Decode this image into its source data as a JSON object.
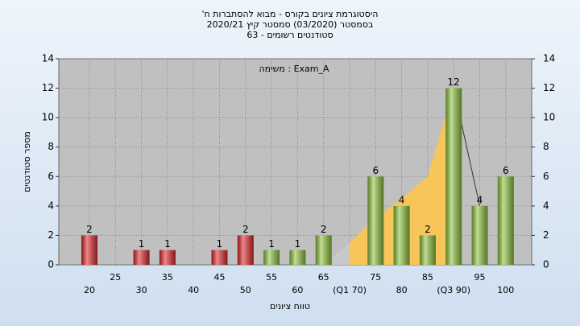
{
  "chart_data": {
    "type": "bar",
    "title": [
      "היסטוגרמת ציונים בקורס - מבוא להסתברות ח'",
      "בסמסטר (03/2020) סמסטר קיץ 2020/21",
      "סטודנטים רשומים - 63"
    ],
    "annotation": "משימה : Exam_A",
    "x_label": "טווח ציונים",
    "y_label": "מספר סטודנטים",
    "categories": [
      "20",
      "25",
      "30",
      "35",
      "40",
      "45",
      "50",
      "55",
      "60",
      "65",
      "(Q1 70)",
      "75",
      "80",
      "85",
      "(Q3 90)",
      "95",
      "100"
    ],
    "values": [
      2,
      0,
      1,
      1,
      0,
      1,
      2,
      1,
      1,
      2,
      0,
      6,
      4,
      2,
      12,
      4,
      6
    ],
    "bar_colors": [
      "#e02828",
      "#e02828",
      "#e02828",
      "#e02828",
      "#e02828",
      "#e02828",
      "#e02828",
      "#8fc43c",
      "#8fc43c",
      "#8fc43c",
      "#8fc43c",
      "#8fc43c",
      "#8fc43c",
      "#8fc43c",
      "#8fc43c",
      "#8fc43c",
      "#8fc43c"
    ],
    "overlay_area": {
      "values": [
        null,
        null,
        null,
        null,
        null,
        null,
        null,
        null,
        null,
        0,
        1.5,
        3.2,
        4.5,
        6,
        12,
        null,
        null
      ],
      "lead_color": "#c8c8c8",
      "color": "#f7c55a"
    },
    "overlay_line": {
      "values": [
        null,
        null,
        null,
        null,
        null,
        null,
        null,
        null,
        null,
        null,
        null,
        null,
        null,
        null,
        12,
        4,
        null
      ],
      "color": "#333333"
    },
    "ylim": [
      0,
      14
    ],
    "yticks": [
      0,
      2,
      4,
      6,
      8,
      10,
      12,
      14
    ],
    "grid": true
  }
}
